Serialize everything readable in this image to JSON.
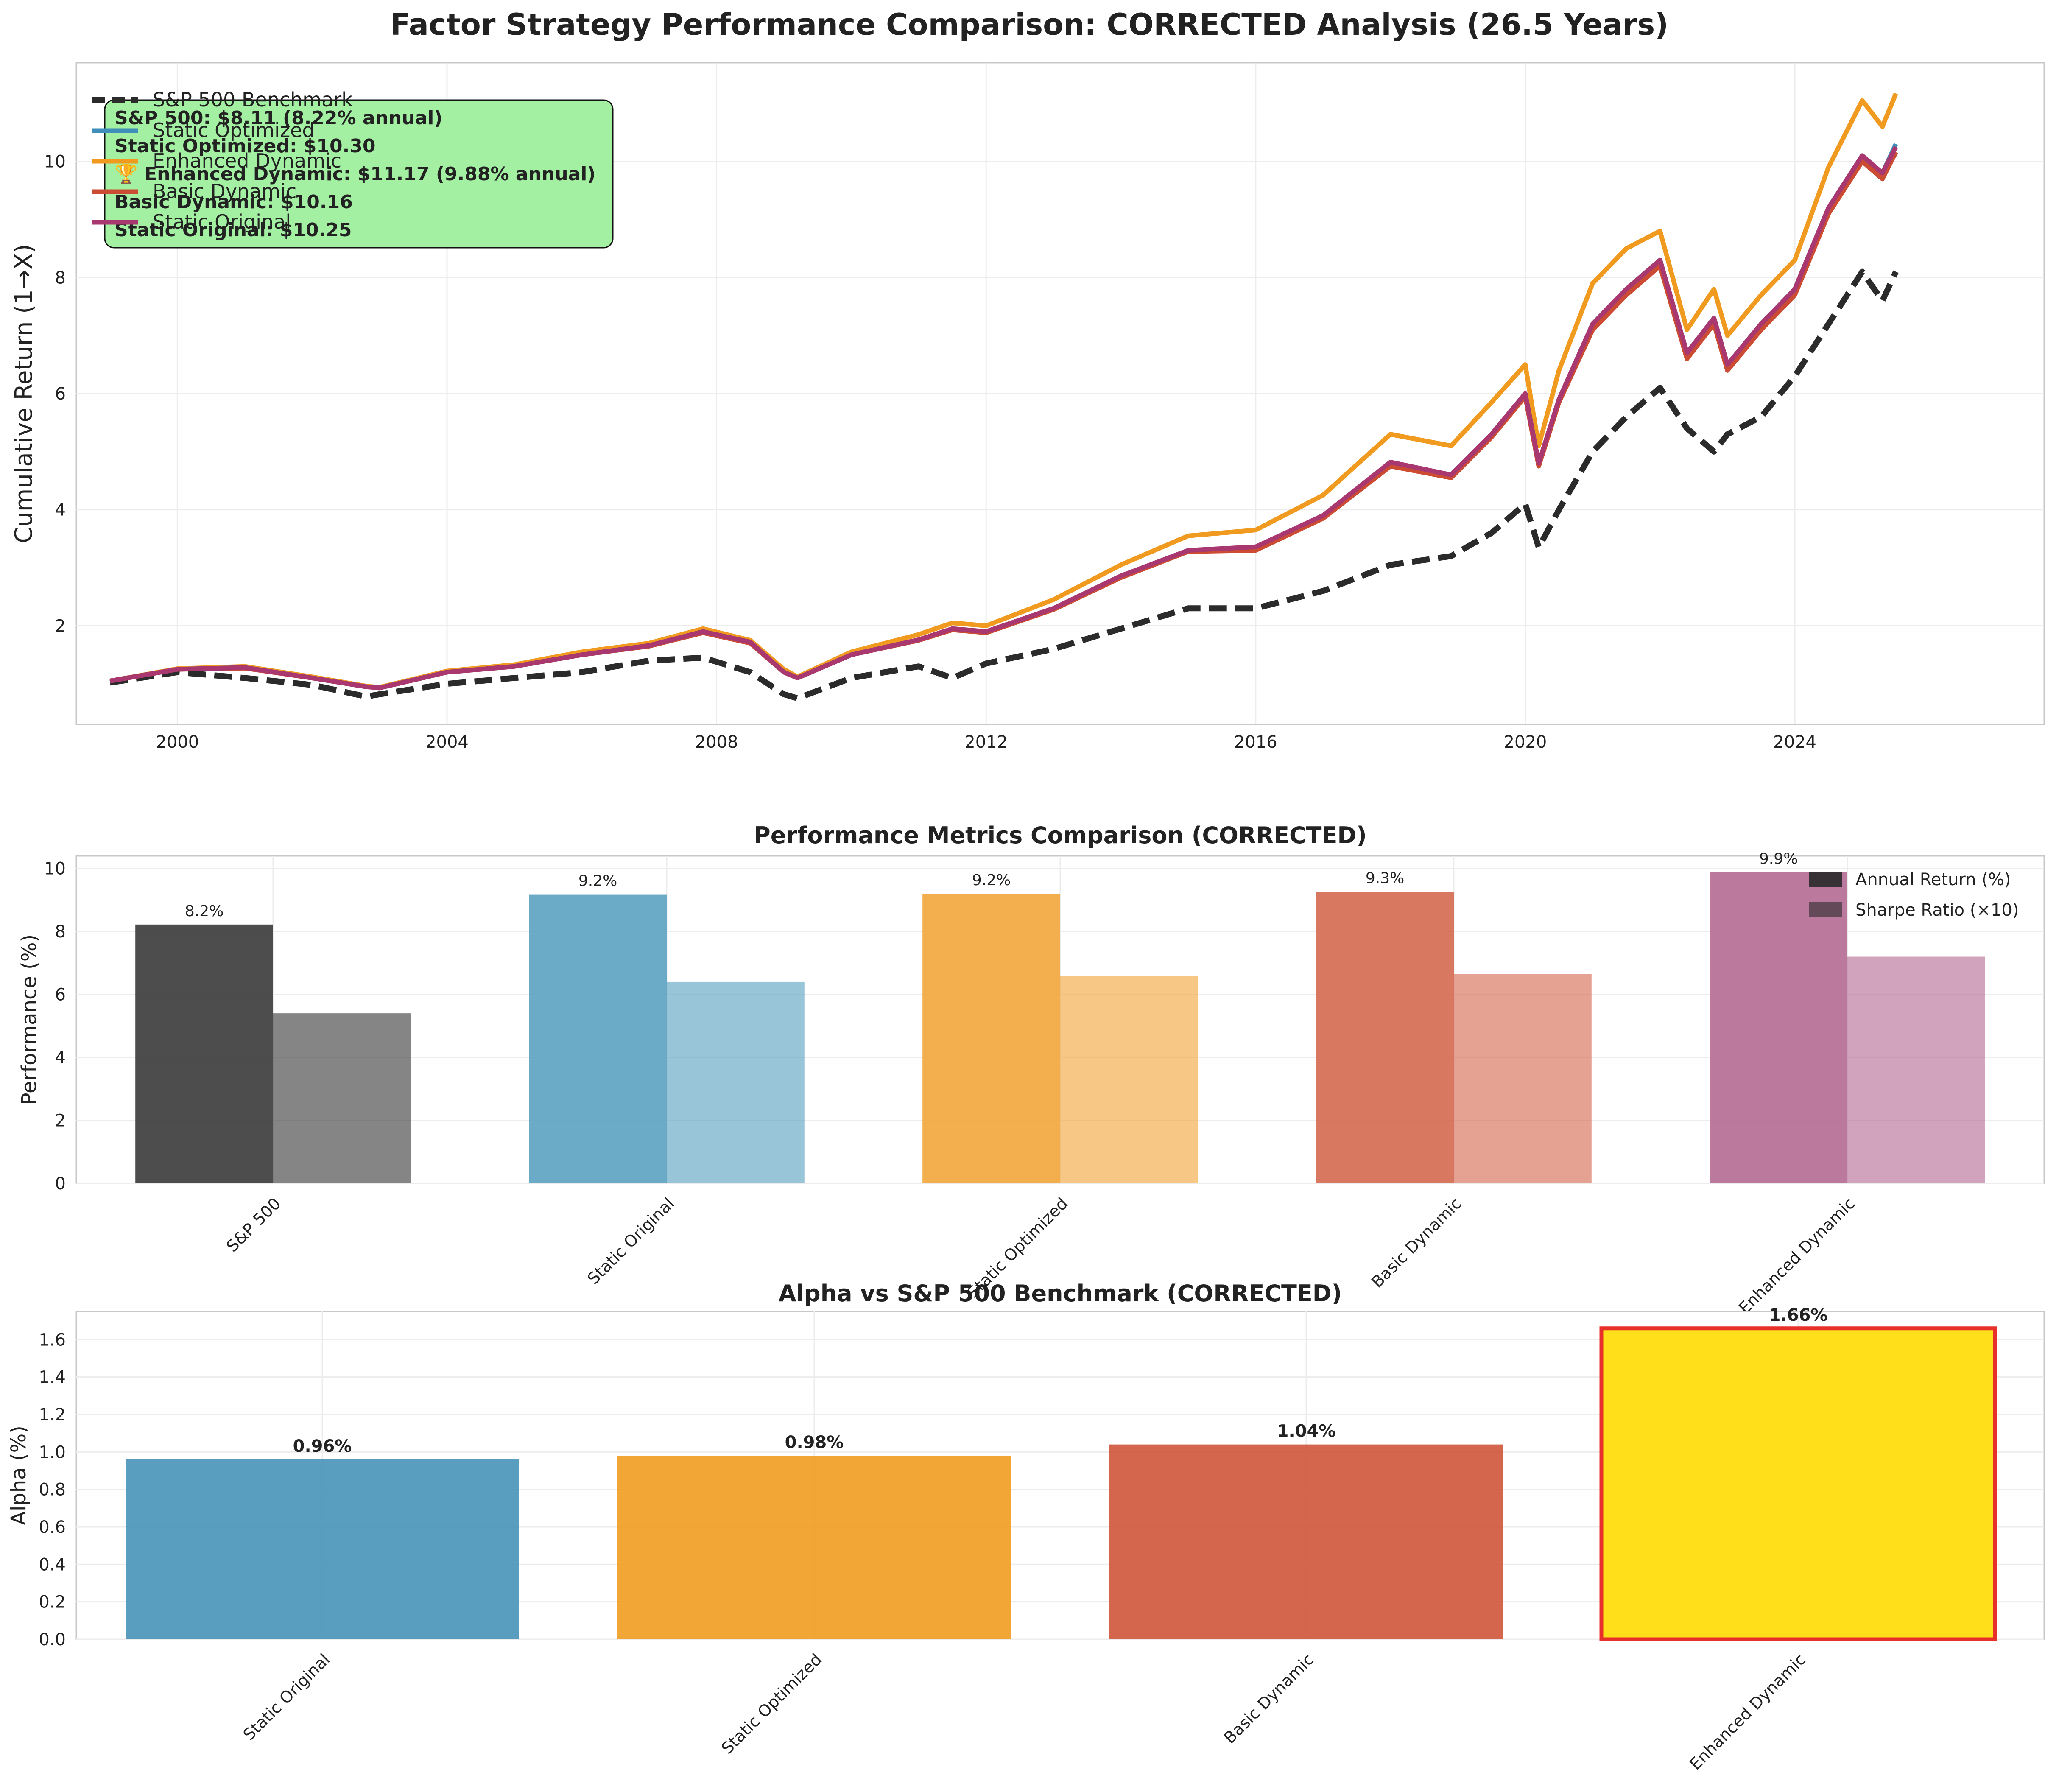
{
  "figure": {
    "title": "Factor Strategy Performance Comparison: CORRECTED Analysis (26.5 Years)"
  },
  "chart_data": [
    {
      "type": "line",
      "ylabel": "Cumulative Return (1→X)",
      "xlabel": "",
      "xlim": [
        1998.5,
        2027.7
      ],
      "ylim": [
        0.3,
        11.7
      ],
      "x_ticks": [
        2000,
        2004,
        2008,
        2012,
        2016,
        2020,
        2024
      ],
      "y_ticks": [
        2,
        4,
        6,
        8,
        10
      ],
      "grid": true,
      "legend": {
        "placement": "upper-left",
        "entries": [
          "S&P 500 Benchmark",
          "Static Optimized",
          "Enhanced Dynamic",
          "Basic Dynamic",
          "Static Original"
        ]
      },
      "annotation_box": {
        "lines": [
          "S&P 500: $8.11 (8.22% annual)",
          "Static Optimized: $10.30",
          "🏆 Enhanced Dynamic: $11.17 (9.88% annual)",
          "Basic Dynamic: $10.16",
          "Static Original: $10.25"
        ],
        "background": "#a3f0a3"
      },
      "x": [
        1999.0,
        2000.0,
        2001.0,
        2002.0,
        2002.8,
        2003.0,
        2004.0,
        2005.0,
        2006.0,
        2007.0,
        2007.8,
        2008.5,
        2009.0,
        2009.2,
        2010.0,
        2011.0,
        2011.5,
        2012.0,
        2013.0,
        2014.0,
        2015.0,
        2016.0,
        2017.0,
        2018.0,
        2018.9,
        2019.5,
        2020.0,
        2020.2,
        2020.5,
        2021.0,
        2021.5,
        2022.0,
        2022.4,
        2022.8,
        2023.0,
        2023.5,
        2024.0,
        2024.5,
        2025.0,
        2025.3,
        2025.5
      ],
      "series": [
        {
          "name": "S&P 500 Benchmark",
          "color": "#2b2b2b",
          "dashed": true,
          "values": [
            1.02,
            1.2,
            1.1,
            0.98,
            0.78,
            0.82,
            1.0,
            1.1,
            1.2,
            1.4,
            1.45,
            1.2,
            0.82,
            0.75,
            1.1,
            1.3,
            1.1,
            1.35,
            1.6,
            1.95,
            2.3,
            2.3,
            2.6,
            3.05,
            3.2,
            3.6,
            4.1,
            3.35,
            4.0,
            5.0,
            5.6,
            6.1,
            5.4,
            5.0,
            5.3,
            5.6,
            6.3,
            7.2,
            8.1,
            7.6,
            8.1
          ]
        },
        {
          "name": "Static Optimized",
          "color": "#3f8fba",
          "dashed": false,
          "values": [
            1.05,
            1.25,
            1.28,
            1.1,
            0.95,
            0.93,
            1.2,
            1.3,
            1.5,
            1.65,
            1.9,
            1.7,
            1.2,
            1.1,
            1.5,
            1.75,
            1.95,
            1.9,
            2.3,
            2.85,
            3.3,
            3.35,
            3.9,
            4.8,
            4.6,
            5.3,
            6.0,
            4.8,
            5.9,
            7.2,
            7.8,
            8.3,
            6.7,
            7.3,
            6.5,
            7.2,
            7.8,
            9.2,
            10.1,
            9.8,
            10.3
          ]
        },
        {
          "name": "Enhanced Dynamic",
          "color": "#f09a20",
          "dashed": false,
          "values": [
            1.05,
            1.26,
            1.3,
            1.12,
            0.96,
            0.94,
            1.22,
            1.33,
            1.55,
            1.7,
            1.95,
            1.75,
            1.25,
            1.12,
            1.55,
            1.85,
            2.05,
            2.0,
            2.45,
            3.05,
            3.55,
            3.65,
            4.25,
            5.3,
            5.1,
            5.85,
            6.5,
            5.1,
            6.4,
            7.9,
            8.5,
            8.8,
            7.1,
            7.8,
            7.0,
            7.7,
            8.3,
            9.9,
            11.05,
            10.6,
            11.17
          ]
        },
        {
          "name": "Basic Dynamic",
          "color": "#cc4b33",
          "dashed": false,
          "values": [
            1.05,
            1.25,
            1.27,
            1.1,
            0.95,
            0.93,
            1.2,
            1.3,
            1.5,
            1.65,
            1.88,
            1.7,
            1.2,
            1.1,
            1.5,
            1.75,
            1.93,
            1.88,
            2.28,
            2.83,
            3.28,
            3.3,
            3.85,
            4.75,
            4.55,
            5.25,
            5.95,
            4.75,
            5.85,
            7.1,
            7.7,
            8.2,
            6.6,
            7.2,
            6.4,
            7.1,
            7.7,
            9.1,
            10.0,
            9.7,
            10.16
          ]
        },
        {
          "name": "Static Original",
          "color": "#a8386f",
          "dashed": false,
          "values": [
            1.05,
            1.25,
            1.28,
            1.1,
            0.95,
            0.93,
            1.2,
            1.3,
            1.5,
            1.66,
            1.9,
            1.72,
            1.2,
            1.1,
            1.5,
            1.76,
            1.95,
            1.9,
            2.3,
            2.86,
            3.3,
            3.36,
            3.9,
            4.82,
            4.6,
            5.3,
            6.0,
            4.8,
            5.9,
            7.2,
            7.8,
            8.3,
            6.7,
            7.3,
            6.5,
            7.2,
            7.8,
            9.2,
            10.1,
            9.8,
            10.25
          ]
        }
      ]
    },
    {
      "type": "bar",
      "title": "Performance Metrics Comparison (CORRECTED)",
      "xlabel": "",
      "ylabel": "Performance (%)",
      "ylim": [
        0,
        10.4
      ],
      "y_ticks": [
        0,
        2,
        4,
        6,
        8,
        10
      ],
      "grid": true,
      "categories": [
        "S&P 500",
        "Static Original",
        "Static Optimized",
        "Basic Dynamic",
        "Enhanced Dynamic"
      ],
      "category_colors": [
        "#3a3a3a",
        "#5ba2c2",
        "#f2a53a",
        "#d5694f",
        "#b46a93"
      ],
      "legend": {
        "placement": "upper-right",
        "entries": [
          "Annual Return (%)",
          "Sharpe Ratio (×10)"
        ]
      },
      "series": [
        {
          "name": "Annual Return (%)",
          "values": [
            8.22,
            9.18,
            9.2,
            9.26,
            9.88
          ],
          "labels": [
            "8.2%",
            "9.2%",
            "9.2%",
            "9.3%",
            "9.9%"
          ]
        },
        {
          "name": "Sharpe Ratio (×10)",
          "values": [
            5.4,
            6.4,
            6.6,
            6.65,
            7.2
          ]
        }
      ]
    },
    {
      "type": "bar",
      "title": "Alpha vs S&P 500 Benchmark (CORRECTED)",
      "xlabel": "",
      "ylabel": "Alpha (%)",
      "ylim": [
        0,
        1.75
      ],
      "y_ticks": [
        "0.0",
        "0.2",
        "0.4",
        "0.6",
        "0.8",
        "1.0",
        "1.2",
        "1.4",
        "1.6"
      ],
      "grid": true,
      "categories": [
        "Static Original",
        "Static Optimized",
        "Basic Dynamic",
        "Enhanced Dynamic"
      ],
      "values": [
        0.96,
        0.98,
        1.04,
        1.66
      ],
      "labels": [
        "0.96%",
        "0.98%",
        "1.04%",
        "1.66%"
      ],
      "colors": [
        "#4793b8",
        "#ef9c20",
        "#cf553a",
        "#ffde1a"
      ],
      "highlight_index": 3,
      "highlight_edge": "#e8302a"
    }
  ]
}
